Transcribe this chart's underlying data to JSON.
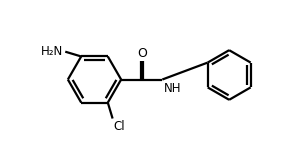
{
  "bg_color": "#ffffff",
  "line_color": "#000000",
  "text_color": "#000000",
  "line_width": 1.6,
  "font_size": 8.5,
  "figsize": [
    3.04,
    1.53
  ],
  "dpi": 100,
  "xlim": [
    0,
    10
  ],
  "ylim": [
    0,
    5
  ]
}
